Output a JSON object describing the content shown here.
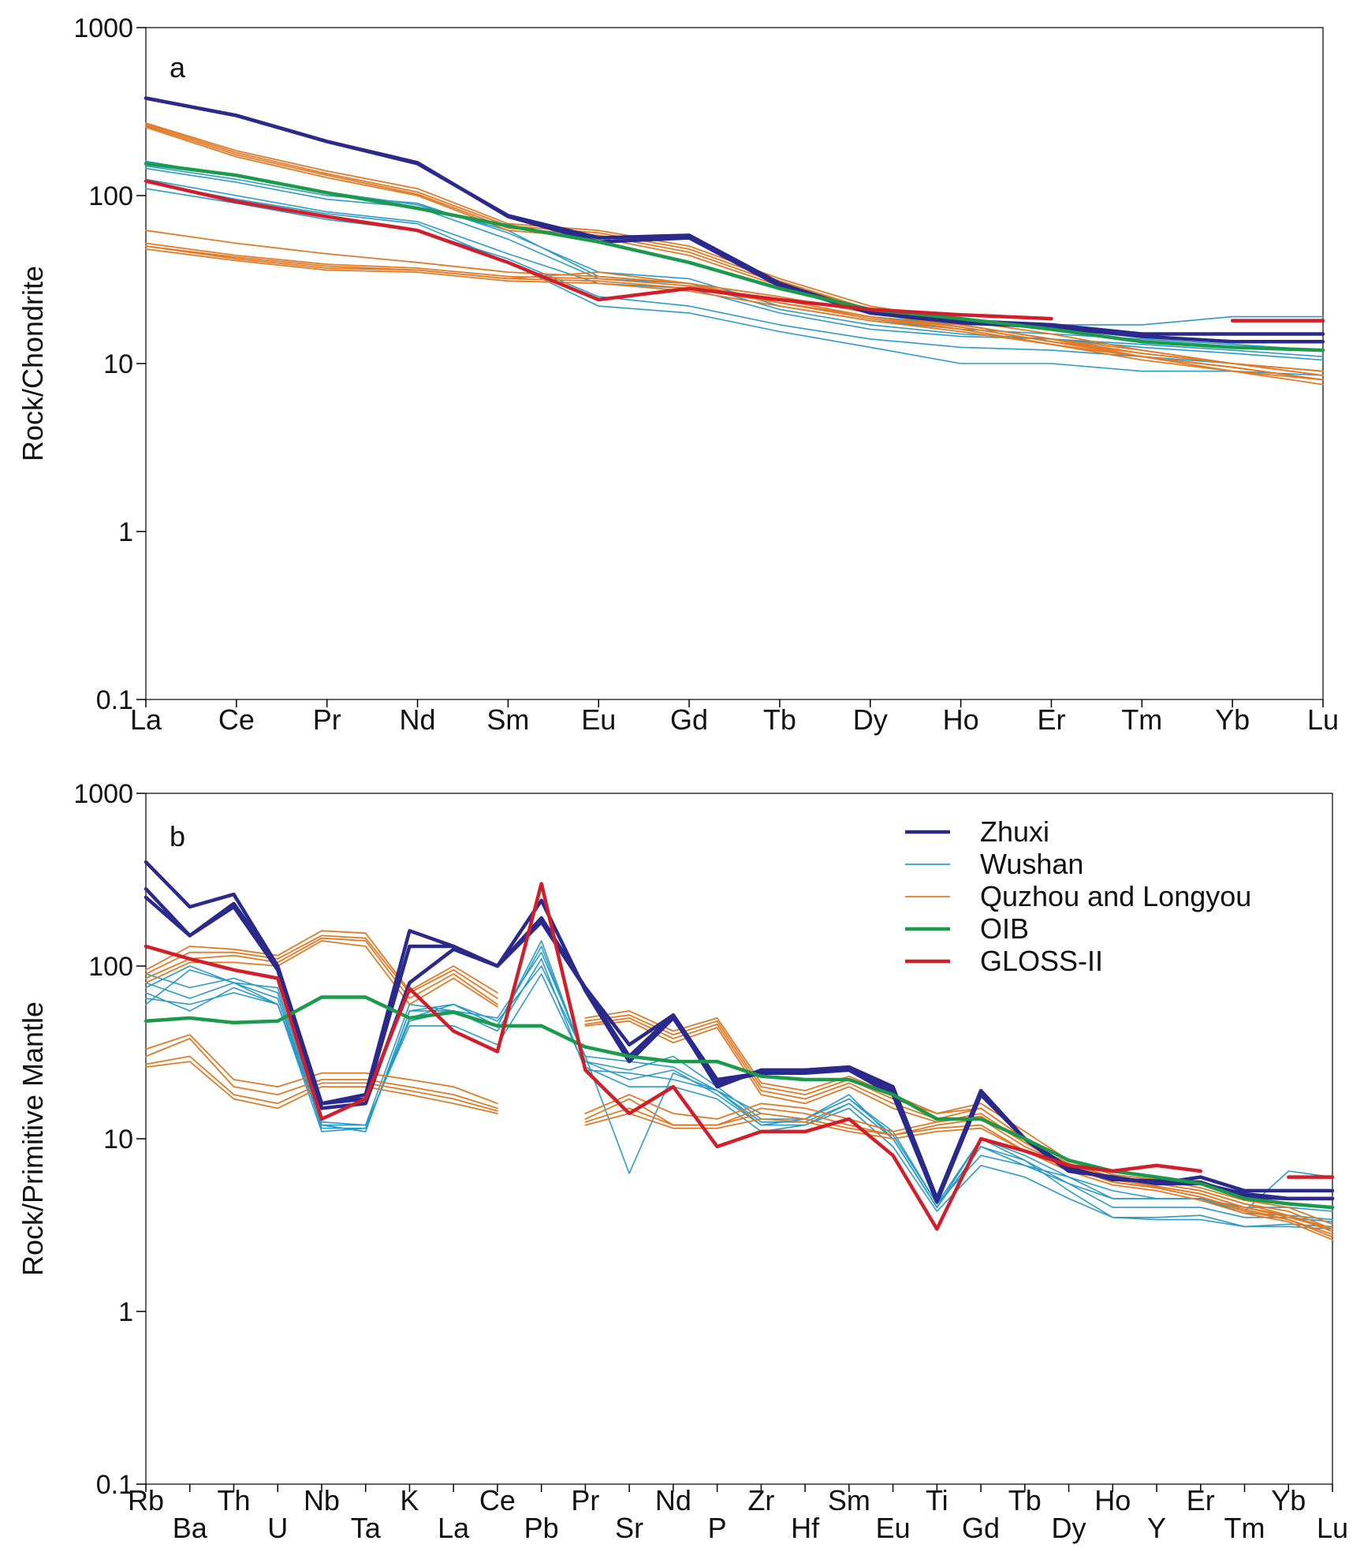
{
  "colors": {
    "zhuxi": "#2a2a8c",
    "wushan": "#2a9bc8",
    "quzhou": "#e07a26",
    "oib": "#1a9a4a",
    "gloss": "#d01f2a"
  },
  "legend": {
    "entries": [
      {
        "name": "Zhuxi",
        "color_key": "zhuxi"
      },
      {
        "name": "Wushan",
        "color_key": "wushan"
      },
      {
        "name": "Quzhou and Longyou",
        "color_key": "quzhou"
      },
      {
        "name": "OIB",
        "color_key": "oib"
      },
      {
        "name": "GLOSS-II",
        "color_key": "gloss"
      }
    ]
  },
  "chart_data": [
    {
      "type": "line",
      "panel": "a",
      "title": "",
      "ylabel": "Rock/Chondrite",
      "xlabel": "",
      "yscale": "log",
      "ylim": [
        0.1,
        1000
      ],
      "yticks": [
        "1000",
        "100",
        "10",
        "1",
        "0.1"
      ],
      "categories": [
        "La",
        "Ce",
        "Pr",
        "Nd",
        "Sm",
        "Eu",
        "Gd",
        "Tb",
        "Dy",
        "Ho",
        "Er",
        "Tm",
        "Yb",
        "Lu"
      ],
      "series": [
        {
          "group": "zhuxi",
          "values": [
            380,
            300,
            210,
            155,
            76,
            56,
            58,
            30,
            20,
            18,
            17,
            15,
            15,
            15
          ]
        },
        {
          "group": "zhuxi",
          "values": [
            380,
            300,
            210,
            157,
            75,
            53,
            56,
            29,
            20,
            17.5,
            16.5,
            14.5,
            13.5,
            13.5
          ]
        },
        {
          "group": "wushan",
          "values": [
            150,
            125,
            100,
            90,
            60,
            35,
            32,
            22,
            18,
            16,
            15,
            14,
            13,
            12
          ]
        },
        {
          "group": "wushan",
          "values": [
            145,
            120,
            95,
            85,
            55,
            32,
            30,
            21,
            17,
            15,
            14,
            13,
            12,
            11
          ]
        },
        {
          "group": "wushan",
          "values": [
            125,
            100,
            80,
            70,
            45,
            30,
            28,
            20,
            16,
            14.5,
            14,
            12.5,
            11.5,
            10.5
          ]
        },
        {
          "group": "wushan",
          "values": [
            110,
            90,
            72,
            62,
            42,
            25,
            22,
            17,
            14,
            12.5,
            12,
            11,
            10,
            9
          ]
        },
        {
          "group": "wushan",
          "values": [
            120,
            95,
            78,
            68,
            40,
            22,
            20,
            15.5,
            12.5,
            10,
            10,
            9,
            9,
            8.5
          ]
        },
        {
          "group": "wushan",
          "values": [
            160,
            130,
            105,
            88,
            62,
            33,
            30,
            23,
            19,
            17,
            17,
            17,
            19,
            19
          ]
        },
        {
          "group": "quzhou",
          "values": [
            270,
            185,
            140,
            110,
            68,
            62,
            50,
            32,
            22,
            18,
            15,
            12,
            10,
            9
          ]
        },
        {
          "group": "quzhou",
          "values": [
            265,
            180,
            135,
            105,
            66,
            60,
            48,
            31,
            21,
            17,
            14,
            11.5,
            10,
            8.5
          ]
        },
        {
          "group": "quzhou",
          "values": [
            260,
            175,
            132,
            102,
            64,
            58,
            46,
            30,
            21,
            17,
            14,
            11,
            9.5,
            8
          ]
        },
        {
          "group": "quzhou",
          "values": [
            255,
            170,
            128,
            100,
            62,
            56,
            44,
            29,
            20,
            16.5,
            13.5,
            11,
            9.5,
            8
          ]
        },
        {
          "group": "quzhou",
          "values": [
            62,
            52,
            45,
            40,
            35,
            33,
            30,
            25,
            20,
            17,
            14,
            12,
            10,
            9
          ]
        },
        {
          "group": "quzhou",
          "values": [
            52,
            44,
            39,
            37,
            33,
            32,
            29,
            24,
            19,
            16.5,
            13.5,
            11.5,
            10,
            8.5
          ]
        },
        {
          "group": "quzhou",
          "values": [
            50,
            42,
            37,
            36,
            32,
            31,
            28,
            23,
            19,
            16,
            13,
            11,
            9.5,
            8
          ]
        },
        {
          "group": "quzhou",
          "values": [
            48,
            41,
            36,
            35,
            31,
            30,
            27,
            22,
            18,
            15.5,
            13,
            11,
            9,
            7.5
          ]
        },
        {
          "group": "quzhou",
          "values": [
            50,
            43,
            38,
            36,
            32,
            35,
            30,
            23,
            18.5,
            16,
            13,
            10.5,
            9,
            8
          ]
        },
        {
          "group": "oib",
          "values": [
            155,
            132,
            104,
            84,
            66,
            53,
            40,
            28,
            21,
            18.5,
            16,
            13.5,
            12.5,
            12
          ]
        },
        {
          "group": "gloss",
          "values": [
            122,
            92,
            75,
            62,
            40,
            24,
            28,
            24,
            21,
            19.5,
            18.5,
            null,
            18,
            18
          ]
        }
      ]
    },
    {
      "type": "line",
      "panel": "b",
      "title": "",
      "ylabel": "Rock/Primitive Mantle",
      "xlabel": "",
      "yscale": "log",
      "ylim": [
        0.1,
        1000
      ],
      "yticks": [
        "1000",
        "100",
        "10",
        "1",
        "0.1"
      ],
      "categories": [
        "Rb",
        "Ba",
        "Th",
        "U",
        "Nb",
        "Ta",
        "K",
        "La",
        "Ce",
        "Pb",
        "Pr",
        "Sr",
        "Nd",
        "P",
        "Zr",
        "Hf",
        "Sm",
        "Eu",
        "Ti",
        "Gd",
        "Tb",
        "Dy",
        "Ho",
        "Y",
        "Er",
        "Tm",
        "Yb",
        "Lu"
      ],
      "label_row": [
        "upper",
        "lower",
        "upper",
        "lower",
        "upper",
        "lower",
        "upper",
        "lower",
        "upper",
        "lower",
        "upper",
        "lower",
        "upper",
        "lower",
        "upper",
        "lower",
        "upper",
        "lower",
        "upper",
        "lower",
        "upper",
        "lower",
        "upper",
        "lower",
        "upper",
        "lower",
        "upper",
        "lower"
      ],
      "series": [
        {
          "group": "zhuxi",
          "values": [
            400,
            220,
            260,
            100,
            16,
            18,
            160,
            130,
            100,
            190,
            75,
            35,
            52,
            20,
            25,
            25,
            26,
            20,
            4.5,
            19,
            10,
            6.5,
            6,
            5.5,
            6,
            5,
            5,
            5
          ]
        },
        {
          "group": "zhuxi",
          "values": [
            280,
            150,
            230,
            100,
            16,
            17,
            130,
            130,
            100,
            180,
            74,
            30,
            52,
            22,
            24,
            24,
            25,
            19,
            4.5,
            18,
            10,
            6.5,
            6,
            5.5,
            5.5,
            4.8,
            4.5,
            4.5
          ]
        },
        {
          "group": "zhuxi",
          "values": [
            250,
            150,
            220,
            95,
            15,
            16,
            80,
            125,
            100,
            240,
            72,
            28,
            50,
            21,
            24,
            25,
            25,
            18,
            4.3,
            18,
            10,
            6.8,
            5.8,
            5.7,
            5.6,
            4.6,
            4.5,
            4.5
          ]
        },
        {
          "group": "wushan",
          "values": [
            70,
            55,
            75,
            60,
            12,
            11,
            55,
            60,
            48,
            100,
            30,
            6.3,
            24,
            19,
            12,
            13,
            18,
            10,
            4,
            10,
            7.5,
            5,
            3.5,
            3.5,
            3.6,
            3.1,
            3.2,
            3.1
          ]
        },
        {
          "group": "wushan",
          "values": [
            80,
            65,
            80,
            65,
            12,
            12,
            60,
            55,
            45,
            130,
            28,
            22,
            25,
            18,
            12,
            12,
            16,
            10,
            4,
            9,
            7,
            5.5,
            4,
            4,
            4,
            3.5,
            3.5,
            3.3
          ]
        },
        {
          "group": "wushan",
          "values": [
            90,
            75,
            85,
            70,
            11.5,
            11.5,
            50,
            60,
            45,
            140,
            28,
            25,
            30,
            20,
            13,
            13,
            17,
            11,
            4.2,
            10,
            8,
            6,
            4.5,
            4.5,
            4.5,
            4,
            4,
            3.8
          ]
        },
        {
          "group": "wushan",
          "values": [
            60,
            95,
            80,
            75,
            12,
            11,
            55,
            55,
            42,
            110,
            25,
            24,
            22,
            19,
            14,
            13,
            17,
            10.5,
            4.2,
            8,
            7,
            6,
            5,
            4.5,
            4.5,
            3.7,
            3.6,
            3.4
          ]
        },
        {
          "group": "wushan",
          "values": [
            65,
            60,
            70,
            60,
            12.5,
            12,
            45,
            45,
            35,
            90,
            26,
            20,
            20,
            17,
            11,
            12,
            15,
            9,
            3.8,
            7,
            6,
            4.5,
            3.5,
            3.4,
            3.4,
            3.1,
            3.1,
            3
          ]
        },
        {
          "group": "wushan",
          "values": [
            75,
            100,
            80,
            60,
            11,
            11.5,
            48,
            55,
            50,
            120,
            30,
            28,
            26,
            19,
            12.5,
            12.5,
            16,
            10,
            4,
            9,
            7.5,
            5.5,
            4.5,
            4.5,
            4.5,
            3.8,
            6.5,
            6
          ]
        },
        {
          "group": "quzhou",
          "values": [
            90,
            120,
            120,
            110,
            150,
            145,
            70,
            95,
            65,
            null,
            48,
            52,
            40,
            48,
            20,
            18,
            22,
            17,
            14,
            15,
            10,
            7,
            6,
            5.5,
            5,
            4.2,
            3.8,
            3
          ]
        },
        {
          "group": "quzhou",
          "values": [
            85,
            110,
            115,
            105,
            145,
            140,
            65,
            90,
            60,
            null,
            46,
            50,
            38,
            46,
            19,
            17,
            21,
            16,
            13,
            15,
            10,
            7,
            5.8,
            5.3,
            4.8,
            4,
            3.6,
            2.9
          ]
        },
        {
          "group": "quzhou",
          "values": [
            95,
            130,
            125,
            115,
            160,
            155,
            72,
            100,
            70,
            null,
            50,
            55,
            42,
            50,
            21,
            19,
            23,
            18,
            14,
            16,
            11,
            7.5,
            6.2,
            5.8,
            5.2,
            4.4,
            4,
            3.2
          ]
        },
        {
          "group": "quzhou",
          "values": [
            80,
            105,
            105,
            100,
            140,
            130,
            60,
            85,
            58,
            null,
            45,
            48,
            36,
            44,
            18,
            16,
            20,
            15,
            12.5,
            14,
            9.5,
            6.8,
            5.6,
            5.2,
            4.6,
            3.8,
            3.4,
            2.7
          ]
        },
        {
          "group": "quzhou",
          "values": [
            30,
            38,
            20,
            18,
            22,
            22,
            20,
            18,
            15,
            null,
            13,
            17,
            12,
            12,
            15,
            14,
            12,
            10.5,
            12,
            13,
            9,
            7,
            5.8,
            5.3,
            4.8,
            4,
            3.5,
            3
          ]
        },
        {
          "group": "quzhou",
          "values": [
            27,
            30,
            18,
            16,
            21,
            21,
            19,
            17,
            14.5,
            null,
            12.5,
            15,
            12,
            12,
            14,
            13,
            11.5,
            10.5,
            11.5,
            12,
            8.5,
            6.8,
            5.6,
            5.2,
            4.6,
            3.9,
            3.4,
            2.8
          ]
        },
        {
          "group": "quzhou",
          "values": [
            33,
            40,
            22,
            20,
            24,
            24,
            22,
            20,
            16,
            null,
            14,
            18,
            14,
            13,
            16,
            15,
            13,
            11,
            12.5,
            13.5,
            9.5,
            7.2,
            6,
            5.5,
            5,
            4.2,
            3.6,
            3
          ]
        },
        {
          "group": "quzhou",
          "values": [
            26,
            28,
            17,
            15,
            20,
            20,
            18,
            16,
            14,
            null,
            12,
            14,
            11.5,
            11.5,
            13,
            12.5,
            11,
            10,
            11,
            11.5,
            8.5,
            6.5,
            5.4,
            5,
            4.4,
            3.7,
            3.3,
            2.6
          ]
        },
        {
          "group": "oib",
          "values": [
            48,
            50,
            47,
            48,
            66,
            66,
            50,
            54,
            45,
            45,
            34,
            30,
            28,
            28,
            23,
            22,
            22,
            18,
            13,
            13,
            10,
            7.5,
            6.5,
            6,
            5.5,
            4.5,
            4.2,
            4
          ]
        },
        {
          "group": "gloss",
          "values": [
            130,
            110,
            95,
            85,
            13,
            17,
            74,
            42,
            32,
            300,
            25,
            14,
            20,
            9,
            11,
            11,
            13,
            8,
            3,
            10,
            8.5,
            7,
            6.5,
            7,
            6.5,
            null,
            6,
            6
          ]
        }
      ]
    }
  ]
}
